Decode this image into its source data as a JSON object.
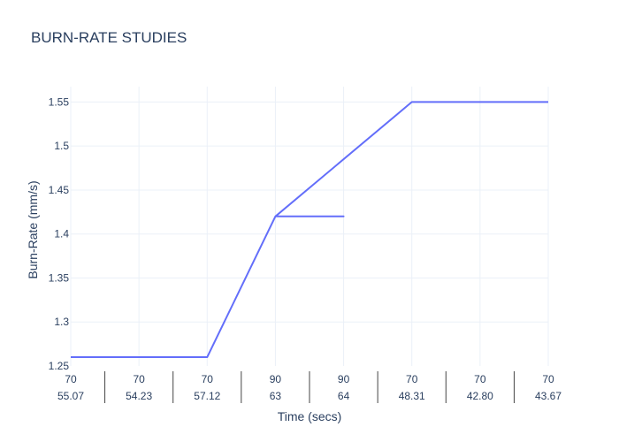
{
  "chart_data": {
    "type": "line",
    "title": "BURN-RATE STUDIES",
    "xlabel": "Time (secs)",
    "ylabel": "Burn-Rate (mm/s)",
    "x_categories": [
      {
        "top": "70",
        "bottom": "55.07"
      },
      {
        "top": "70",
        "bottom": "54.23"
      },
      {
        "top": "70",
        "bottom": "57.12"
      },
      {
        "top": "90",
        "bottom": "63"
      },
      {
        "top": "90",
        "bottom": "64"
      },
      {
        "top": "70",
        "bottom": "48.31"
      },
      {
        "top": "70",
        "bottom": "42.80"
      },
      {
        "top": "70",
        "bottom": "43.67"
      }
    ],
    "series": [
      {
        "points": [
          {
            "category_index": 0,
            "y": 1.26
          },
          {
            "category_index": 1,
            "y": 1.26
          },
          {
            "category_index": 2,
            "y": 1.26
          },
          {
            "category_index": 3,
            "y": 1.42
          },
          {
            "category_index": 4,
            "y": 1.42
          },
          {
            "category_index": 3,
            "y": 1.42
          },
          {
            "category_index": 5,
            "y": 1.55
          },
          {
            "category_index": 6,
            "y": 1.55
          },
          {
            "category_index": 7,
            "y": 1.55
          }
        ]
      }
    ],
    "ylim": [
      1.25,
      1.5675
    ],
    "yticks": [
      "1.25",
      "1.3",
      "1.35",
      "1.4",
      "1.45",
      "1.5",
      "1.55"
    ],
    "ytick_values": [
      1.25,
      1.3,
      1.35,
      1.4,
      1.45,
      1.5,
      1.55
    ],
    "grid": true,
    "legend": "none",
    "colors": {
      "line": "#636efa",
      "grid": "#ebf0f8",
      "text": "#2a3f5f",
      "divider": "#444444"
    }
  }
}
